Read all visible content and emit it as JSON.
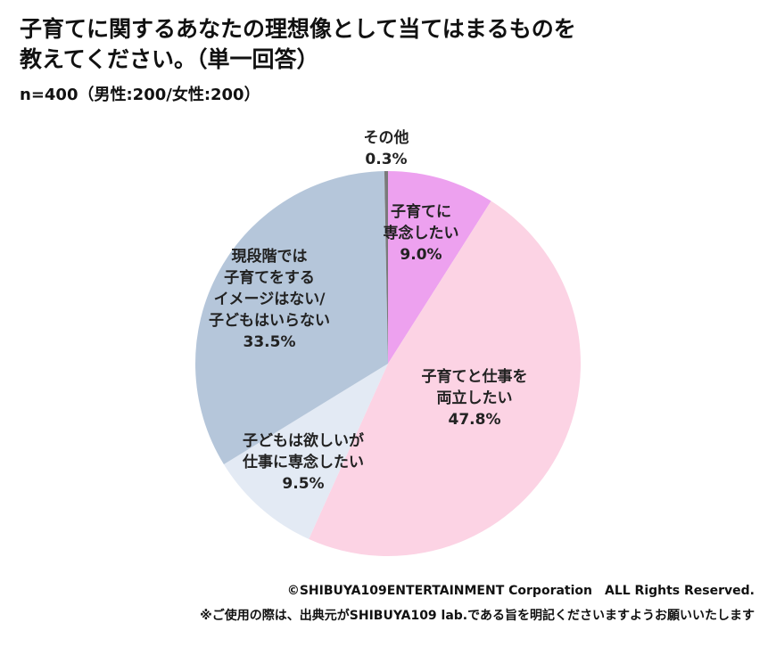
{
  "chart_data": {
    "type": "pie",
    "title": "子育てに関するあなたの理想像として当てはまるものを\n教えてください。（単一回答）",
    "subtitle": "n=400（男性:200/女性:200）",
    "categories": [
      "子育てに\n専念したい",
      "子育てと仕事を\n両立したい",
      "子どもは欲しいが\n仕事に専念したい",
      "現段階では\n子育てをする\nイメージはない/\n子どもはいらない",
      "その他"
    ],
    "values": [
      9.0,
      47.8,
      9.5,
      33.5,
      0.3
    ],
    "value_labels": [
      "9.0%",
      "47.8%",
      "9.5%",
      "33.5%",
      "0.3%"
    ],
    "colors": [
      "#eda1ef",
      "#fcd3e4",
      "#e3eaf4",
      "#b5c6da",
      "#7a7a7a"
    ],
    "footer": [
      "©SHIBUYA109ENTERTAINMENT Corporation　ALL Rights Reserved.",
      "※ご使用の際は、出典元がSHIBUYA109 lab.である旨を明記くださいますようお願いいたします"
    ]
  }
}
